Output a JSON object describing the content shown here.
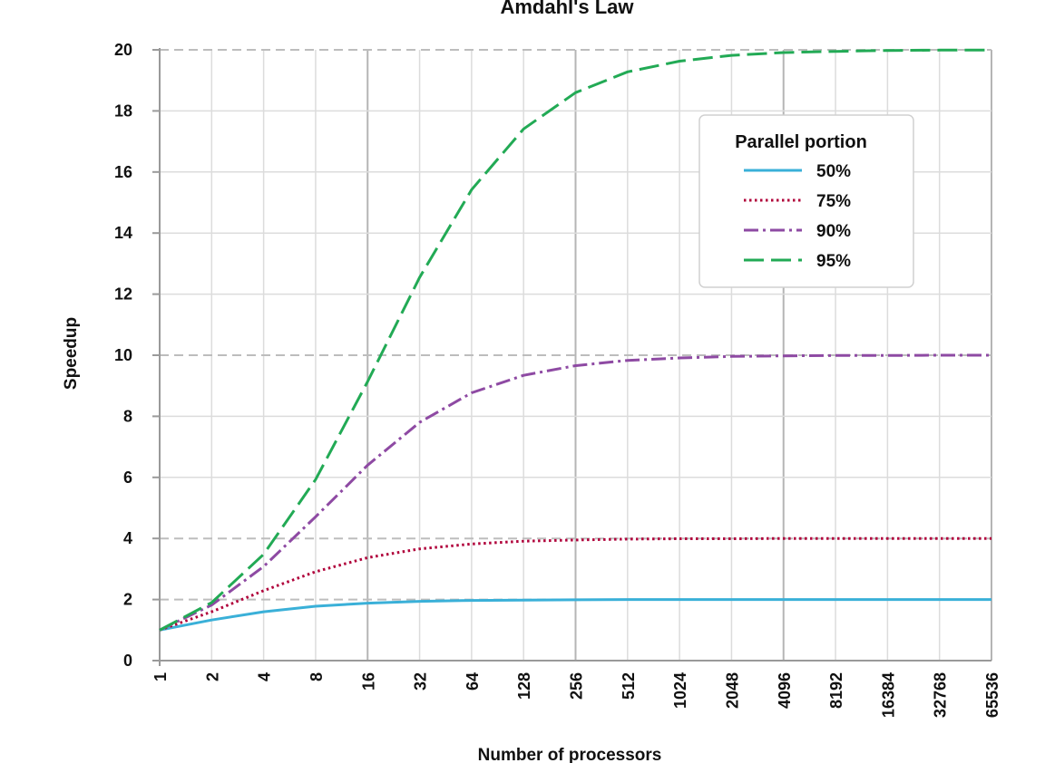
{
  "chart_data": {
    "type": "line",
    "title": "Amdahl's Law",
    "xlabel": "Number of processors",
    "ylabel": "Speedup",
    "x_scale": "log2",
    "x": [
      1,
      2,
      4,
      8,
      16,
      32,
      64,
      128,
      256,
      512,
      1024,
      2048,
      4096,
      8192,
      16384,
      32768,
      65536
    ],
    "x_tick_labels": [
      "1",
      "2",
      "4",
      "8",
      "16",
      "32",
      "64",
      "128",
      "256",
      "512",
      "1024",
      "2048",
      "4096",
      "8192",
      "16384",
      "32768",
      "65536"
    ],
    "y_ticks": [
      0,
      2,
      4,
      6,
      8,
      10,
      12,
      14,
      16,
      18,
      20
    ],
    "y_tick_labels": [
      "0",
      "2",
      "4",
      "6",
      "8",
      "10",
      "12",
      "14",
      "16",
      "18",
      "20"
    ],
    "ylim": [
      0,
      20
    ],
    "grid": true,
    "legend": {
      "title": "Parallel portion",
      "placement": "top-right"
    },
    "series": [
      {
        "name": "50%",
        "color": "#3ab0d8",
        "style": "solid",
        "values": [
          1.0,
          1.33,
          1.6,
          1.78,
          1.88,
          1.94,
          1.97,
          1.98,
          1.99,
          2.0,
          2.0,
          2.0,
          2.0,
          2.0,
          2.0,
          2.0,
          2.0
        ]
      },
      {
        "name": "75%",
        "color": "#b0003a",
        "style": "dotted",
        "values": [
          1.0,
          1.6,
          2.29,
          2.91,
          3.37,
          3.66,
          3.82,
          3.91,
          3.95,
          3.98,
          3.99,
          3.99,
          4.0,
          4.0,
          4.0,
          4.0,
          4.0
        ]
      },
      {
        "name": "90%",
        "color": "#8e4aa3",
        "style": "dashdot",
        "values": [
          1.0,
          1.82,
          3.08,
          4.71,
          6.4,
          7.8,
          8.77,
          9.34,
          9.66,
          9.83,
          9.91,
          9.96,
          9.98,
          9.99,
          9.99,
          10.0,
          10.0
        ]
      },
      {
        "name": "95%",
        "color": "#22aa55",
        "style": "dashed",
        "values": [
          1.0,
          1.9,
          3.48,
          5.93,
          9.14,
          12.55,
          15.42,
          17.41,
          18.6,
          19.28,
          19.63,
          19.82,
          19.91,
          19.95,
          19.98,
          19.99,
          19.99
        ]
      }
    ]
  }
}
